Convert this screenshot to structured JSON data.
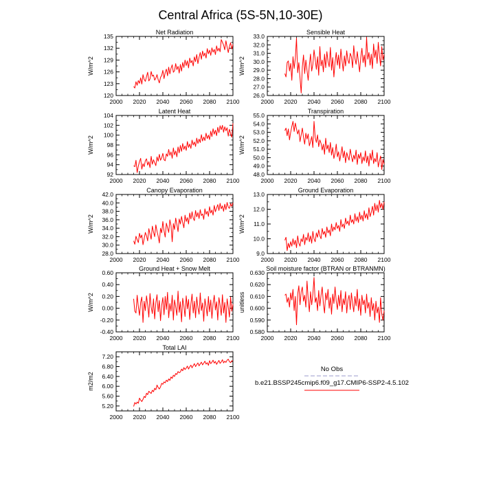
{
  "figure": {
    "title": "Central Africa (5S-5N,10-30E)"
  },
  "legend": {
    "obs_label": "No Obs",
    "obs_color": "#9999cc",
    "run_label": "b.e21.BSSP245cmip6.f09_g17.CMIP6-SSP2-4.5.102",
    "run_color": "#ff0000"
  },
  "chart_data": [
    {
      "type": "line",
      "title": "Net Radiation",
      "ylabel": "W/m^2",
      "xlim": [
        2000,
        2100
      ],
      "ylim": [
        120,
        135
      ],
      "xticks": [
        2000,
        2020,
        2040,
        2060,
        2080,
        2100
      ],
      "yticks": [
        120,
        123,
        126,
        129,
        132,
        135
      ],
      "ytick_labels": [
        "120",
        "123",
        "126",
        "129",
        "132",
        "135"
      ],
      "x_start": 2015,
      "line_color": "#ff0000",
      "values": [
        122.3,
        121.9,
        123.5,
        122.6,
        123.8,
        123.1,
        124.5,
        122.9,
        125.3,
        124.1,
        123.6,
        124.8,
        125.9,
        123.7,
        124.2,
        126.1,
        124.9,
        125.2,
        123.9,
        124.4,
        125.3,
        124.0,
        123.2,
        124.6,
        125.1,
        126.4,
        124.3,
        125.8,
        126.7,
        125.0,
        127.2,
        125.5,
        126.9,
        127.8,
        125.9,
        126.3,
        128.1,
        126.6,
        127.4,
        125.7,
        127.9,
        126.2,
        128.4,
        127.1,
        129.0,
        127.6,
        128.8,
        127.0,
        129.5,
        128.3,
        128.9,
        127.5,
        129.8,
        128.6,
        130.4,
        128.1,
        129.7,
        130.9,
        129.2,
        131.3,
        130.0,
        130.8,
        129.5,
        131.9,
        130.6,
        131.5,
        130.2,
        132.1,
        131.0,
        131.7,
        130.4,
        132.6,
        131.3,
        132.0,
        131.1,
        134.2,
        133.5,
        132.8,
        131.6,
        133.9,
        132.3,
        130.9,
        132.5,
        133.4,
        131.8,
        133.0
      ]
    },
    {
      "type": "line",
      "title": "Sensible Heat",
      "ylabel": "W/m^2",
      "xlim": [
        2000,
        2100
      ],
      "ylim": [
        26,
        33
      ],
      "xticks": [
        2000,
        2020,
        2040,
        2060,
        2080,
        2100
      ],
      "yticks": [
        26,
        27,
        28,
        29,
        30,
        31,
        32,
        33
      ],
      "ytick_labels": [
        "26.0",
        "27.0",
        "28.0",
        "29.0",
        "30.0",
        "31.0",
        "32.0",
        "33.0"
      ],
      "x_start": 2015,
      "line_color": "#ff0000",
      "values": [
        28.6,
        28.2,
        29.9,
        30.1,
        28.9,
        29.8,
        27.8,
        30.6,
        29.2,
        30.4,
        32.8,
        28.7,
        29.9,
        28.1,
        26.3,
        29.4,
        30.8,
        28.6,
        30.2,
        29.0,
        27.8,
        29.6,
        30.9,
        28.9,
        29.7,
        31.4,
        30.3,
        29.1,
        30.6,
        28.4,
        31.8,
        29.5,
        30.2,
        28.8,
        30.9,
        29.3,
        31.2,
        30.0,
        29.4,
        31.7,
        29.0,
        30.5,
        28.2,
        29.9,
        31.1,
        29.6,
        30.8,
        29.2,
        31.5,
        30.1,
        28.9,
        30.7,
        29.5,
        31.3,
        30.2,
        29.8,
        31.0,
        30.6,
        29.3,
        31.9,
        30.4,
        29.7,
        31.2,
        30.0,
        28.8,
        30.5,
        31.6,
        29.9,
        30.8,
        29.4,
        32.9,
        30.3,
        31.1,
        29.6,
        30.9,
        29.2,
        32.1,
        30.5,
        31.4,
        29.8,
        32.3,
        30.7,
        29.5,
        31.8,
        30.2,
        30.9
      ]
    },
    {
      "type": "line",
      "title": "Latent Heat",
      "ylabel": "W/m^2",
      "xlim": [
        2000,
        2100
      ],
      "ylim": [
        92,
        104
      ],
      "xticks": [
        2000,
        2020,
        2040,
        2060,
        2080,
        2100
      ],
      "yticks": [
        92,
        94,
        96,
        98,
        100,
        102,
        104
      ],
      "ytick_labels": [
        "92",
        "94",
        "96",
        "98",
        "100",
        "102",
        "104"
      ],
      "x_start": 2015,
      "line_color": "#ff0000",
      "values": [
        93.8,
        93.6,
        94.9,
        92.4,
        93.7,
        94.6,
        95.3,
        93.1,
        94.2,
        93.6,
        94.8,
        95.2,
        93.9,
        94.6,
        93.4,
        95.7,
        94.1,
        95.0,
        94.4,
        93.8,
        95.6,
        94.7,
        96.1,
        94.9,
        95.4,
        96.3,
        95.0,
        94.8,
        96.2,
        95.7,
        97.1,
        95.9,
        96.6,
        95.3,
        97.4,
        96.0,
        96.8,
        95.6,
        97.6,
        96.4,
        97.9,
        96.7,
        98.3,
        97.1,
        97.8,
        96.9,
        98.7,
        97.5,
        98.2,
        97.3,
        99.0,
        98.0,
        98.6,
        97.7,
        99.4,
        98.3,
        99.2,
        98.5,
        100.1,
        98.8,
        99.6,
        98.9,
        100.4,
        99.3,
        100.0,
        99.1,
        100.8,
        99.7,
        101.3,
        100.2,
        101.0,
        99.9,
        101.6,
        100.5,
        101.9,
        101.1,
        102.0,
        100.6,
        101.7,
        100.9,
        101.5,
        99.8,
        101.2,
        100.3,
        99.6,
        102.4
      ]
    },
    {
      "type": "line",
      "title": "Transpiration",
      "ylabel": "W/m^2",
      "xlim": [
        2000,
        2100
      ],
      "ylim": [
        48,
        55
      ],
      "xticks": [
        2000,
        2020,
        2040,
        2060,
        2080,
        2100
      ],
      "yticks": [
        48,
        49,
        50,
        51,
        52,
        53,
        54,
        55
      ],
      "ytick_labels": [
        "48.0",
        "49.0",
        "50.0",
        "51.0",
        "52.0",
        "53.0",
        "54.0",
        "55.0"
      ],
      "x_start": 2015,
      "line_color": "#ff0000",
      "values": [
        53.2,
        53.5,
        52.6,
        53.4,
        52.1,
        53.0,
        53.7,
        54.3,
        53.1,
        54.1,
        53.4,
        52.8,
        53.3,
        51.9,
        52.7,
        53.5,
        52.4,
        51.6,
        52.9,
        52.2,
        52.8,
        51.4,
        51.9,
        52.5,
        51.2,
        54.3,
        52.4,
        51.8,
        52.7,
        51.3,
        52.1,
        51.7,
        50.9,
        51.6,
        50.4,
        52.3,
        51.0,
        51.5,
        50.6,
        51.8,
        50.3,
        51.2,
        49.9,
        50.5,
        51.6,
        50.1,
        50.7,
        49.6,
        50.4,
        51.3,
        50.0,
        50.8,
        49.4,
        50.6,
        50.1,
        49.7,
        51.0,
        50.2,
        49.5,
        50.3,
        49.8,
        50.9,
        49.2,
        50.4,
        49.9,
        50.6,
        49.3,
        50.1,
        49.6,
        50.8,
        49.4,
        50.2,
        49.0,
        50.5,
        49.7,
        50.9,
        49.3,
        49.9,
        49.5,
        50.6,
        48.9,
        49.6,
        50.2,
        48.6,
        49.8,
        49.2
      ]
    },
    {
      "type": "line",
      "title": "Canopy Evaporation",
      "ylabel": "W/m^2",
      "xlim": [
        2000,
        2100
      ],
      "ylim": [
        28,
        42
      ],
      "xticks": [
        2000,
        2020,
        2040,
        2060,
        2080,
        2100
      ],
      "yticks": [
        28,
        30,
        32,
        34,
        36,
        38,
        40,
        42
      ],
      "ytick_labels": [
        "28.0",
        "30.0",
        "32.0",
        "34.0",
        "36.0",
        "38.0",
        "40.0",
        "42.0"
      ],
      "x_start": 2015,
      "line_color": "#ff0000",
      "values": [
        31.0,
        30.2,
        32.1,
        31.3,
        30.6,
        32.8,
        31.7,
        32.4,
        30.1,
        31.5,
        33.0,
        32.2,
        31.0,
        33.9,
        32.6,
        31.4,
        34.5,
        33.1,
        32.0,
        34.8,
        33.3,
        32.1,
        30.5,
        34.0,
        32.9,
        35.6,
        33.4,
        31.9,
        35.2,
        34.1,
        33.0,
        36.0,
        34.6,
        30.8,
        35.1,
        33.7,
        36.4,
        34.9,
        33.2,
        36.2,
        35.0,
        36.8,
        35.3,
        34.1,
        37.1,
        35.6,
        36.5,
        35.0,
        37.6,
        36.2,
        37.9,
        36.4,
        35.8,
        38.2,
        36.7,
        37.7,
        36.3,
        38.4,
        37.0,
        37.4,
        36.1,
        38.6,
        37.3,
        38.0,
        36.8,
        39.1,
        37.6,
        38.3,
        37.1,
        39.4,
        37.9,
        38.8,
        39.6,
        38.2,
        39.9,
        38.6,
        39.3,
        38.0,
        39.7,
        38.4,
        40.1,
        39.0,
        38.7,
        39.8,
        39.2,
        40.0
      ]
    },
    {
      "type": "line",
      "title": "Ground Evaporation",
      "ylabel": "W/m^2",
      "xlim": [
        2000,
        2100
      ],
      "ylim": [
        9,
        13
      ],
      "xticks": [
        2000,
        2020,
        2040,
        2060,
        2080,
        2100
      ],
      "yticks": [
        9,
        10,
        11,
        12,
        13
      ],
      "ytick_labels": [
        "9.0",
        "10.0",
        "11.0",
        "12.0",
        "13.0"
      ],
      "x_start": 2015,
      "line_color": "#ff0000",
      "values": [
        9.9,
        10.1,
        9.2,
        9.7,
        9.4,
        9.8,
        9.5,
        10.0,
        9.6,
        9.9,
        9.4,
        10.2,
        9.7,
        9.5,
        10.0,
        9.8,
        10.3,
        9.6,
        10.1,
        9.9,
        10.4,
        9.8,
        10.2,
        9.7,
        10.5,
        10.0,
        9.8,
        10.4,
        10.1,
        10.6,
        10.2,
        10.0,
        10.7,
        10.3,
        10.5,
        10.1,
        10.8,
        10.4,
        10.6,
        10.2,
        11.0,
        10.5,
        10.8,
        10.6,
        11.1,
        10.7,
        10.9,
        10.5,
        11.3,
        10.8,
        11.0,
        10.7,
        11.4,
        11.0,
        11.2,
        10.9,
        11.6,
        11.1,
        11.3,
        11.0,
        11.7,
        11.2,
        11.5,
        11.1,
        11.8,
        11.3,
        11.6,
        11.2,
        11.9,
        11.4,
        11.7,
        11.3,
        12.1,
        11.5,
        11.8,
        12.2,
        11.6,
        12.4,
        11.9,
        12.3,
        11.8,
        12.6,
        12.1,
        12.4,
        12.0,
        12.5
      ]
    },
    {
      "type": "line",
      "title": "Ground Heat + Snow Melt",
      "ylabel": "W/m^2",
      "xlim": [
        2000,
        2100
      ],
      "ylim": [
        -0.4,
        0.6
      ],
      "xticks": [
        2000,
        2020,
        2040,
        2060,
        2080,
        2100
      ],
      "yticks": [
        -0.4,
        -0.2,
        0.0,
        0.2,
        0.4,
        0.6
      ],
      "ytick_labels": [
        "-0.40",
        "-0.20",
        "0.00",
        "0.20",
        "0.40",
        "0.60"
      ],
      "x_start": 2015,
      "line_color": "#ff0000",
      "values": [
        0.16,
        -0.05,
        -0.08,
        0.22,
        0.03,
        -0.12,
        0.1,
        0.19,
        -0.24,
        0.12,
        -0.04,
        0.21,
        0.06,
        -0.15,
        0.25,
        0.02,
        -0.09,
        0.16,
        -0.18,
        0.09,
        0.23,
        -0.06,
        0.13,
        -0.21,
        0.05,
        0.18,
        -0.11,
        0.2,
        -0.02,
        0.27,
        -0.16,
        0.08,
        -0.05,
        0.22,
        -0.2,
        0.14,
        0.02,
        -0.12,
        0.29,
        -0.07,
        0.11,
        -0.23,
        0.17,
        0.04,
        -0.14,
        0.21,
        -0.01,
        0.15,
        -0.19,
        0.07,
        0.24,
        -0.08,
        0.12,
        -0.16,
        0.19,
        0.01,
        -0.1,
        0.26,
        -0.04,
        0.09,
        -0.22,
        0.16,
        0.03,
        -0.13,
        0.2,
        -0.06,
        0.14,
        -0.17,
        0.08,
        0.22,
        -0.03,
        0.11,
        -0.2,
        0.18,
        0.05,
        -0.12,
        0.23,
        -0.08,
        0.1,
        -0.24,
        0.16,
        0.02,
        -0.15,
        0.19,
        -0.05,
        0.07
      ]
    },
    {
      "type": "line",
      "title": "Soil moisture factor (BTRAN or BTRANMN)",
      "ylabel": "unitless",
      "xlim": [
        2000,
        2100
      ],
      "ylim": [
        0.58,
        0.63
      ],
      "xticks": [
        2000,
        2020,
        2040,
        2060,
        2080,
        2100
      ],
      "yticks": [
        0.58,
        0.59,
        0.6,
        0.61,
        0.62,
        0.63
      ],
      "ytick_labels": [
        "0.580",
        "0.590",
        "0.600",
        "0.610",
        "0.620",
        "0.630"
      ],
      "x_start": 2015,
      "line_color": "#ff0000",
      "values": [
        0.611,
        0.612,
        0.605,
        0.609,
        0.601,
        0.613,
        0.607,
        0.616,
        0.598,
        0.61,
        0.586,
        0.612,
        0.619,
        0.603,
        0.614,
        0.618,
        0.606,
        0.611,
        0.601,
        0.623,
        0.608,
        0.597,
        0.614,
        0.603,
        0.612,
        0.626,
        0.605,
        0.609,
        0.598,
        0.615,
        0.602,
        0.611,
        0.618,
        0.604,
        0.596,
        0.613,
        0.607,
        0.616,
        0.6,
        0.609,
        0.595,
        0.612,
        0.604,
        0.618,
        0.606,
        0.599,
        0.611,
        0.602,
        0.615,
        0.597,
        0.608,
        0.603,
        0.614,
        0.596,
        0.607,
        0.611,
        0.599,
        0.613,
        0.604,
        0.597,
        0.61,
        0.602,
        0.616,
        0.598,
        0.608,
        0.594,
        0.611,
        0.603,
        0.607,
        0.596,
        0.612,
        0.6,
        0.605,
        0.593,
        0.609,
        0.598,
        0.604,
        0.59,
        0.606,
        0.596,
        0.601,
        0.588,
        0.609,
        0.595,
        0.59,
        0.598
      ]
    },
    {
      "type": "line",
      "title": "Total LAI",
      "ylabel": "m2/m2",
      "xlim": [
        2000,
        2100
      ],
      "ylim": [
        5.0,
        7.4
      ],
      "xticks": [
        2000,
        2020,
        2040,
        2060,
        2080,
        2100
      ],
      "yticks": [
        5.2,
        5.6,
        6.0,
        6.4,
        6.8,
        7.2
      ],
      "ytick_labels": [
        "5.20",
        "5.60",
        "6.00",
        "6.40",
        "6.80",
        "7.20"
      ],
      "x_start": 2015,
      "line_color": "#ff0000",
      "values": [
        5.18,
        5.34,
        5.28,
        5.36,
        5.31,
        5.52,
        5.44,
        5.38,
        5.47,
        5.59,
        5.54,
        5.72,
        5.66,
        5.8,
        5.75,
        5.71,
        5.84,
        5.78,
        5.92,
        5.86,
        6.05,
        5.95,
        5.89,
        5.98,
        6.12,
        6.08,
        6.18,
        6.14,
        6.25,
        6.19,
        6.3,
        6.24,
        6.38,
        6.32,
        6.45,
        6.4,
        6.52,
        6.48,
        6.6,
        6.55,
        6.58,
        6.7,
        6.63,
        6.76,
        6.68,
        6.74,
        6.82,
        6.7,
        6.79,
        6.86,
        6.75,
        6.84,
        6.92,
        6.8,
        6.88,
        6.95,
        6.83,
        6.91,
        6.98,
        6.87,
        6.94,
        7.02,
        6.9,
        6.96,
        6.85,
        7.04,
        6.92,
        6.98,
        7.06,
        6.94,
        7.01,
        6.89,
        6.97,
        7.05,
        6.93,
        6.99,
        7.08,
        6.95,
        7.02,
        6.97,
        7.06,
        7.1,
        7.0,
        6.96,
        7.04,
        7.02
      ]
    }
  ]
}
